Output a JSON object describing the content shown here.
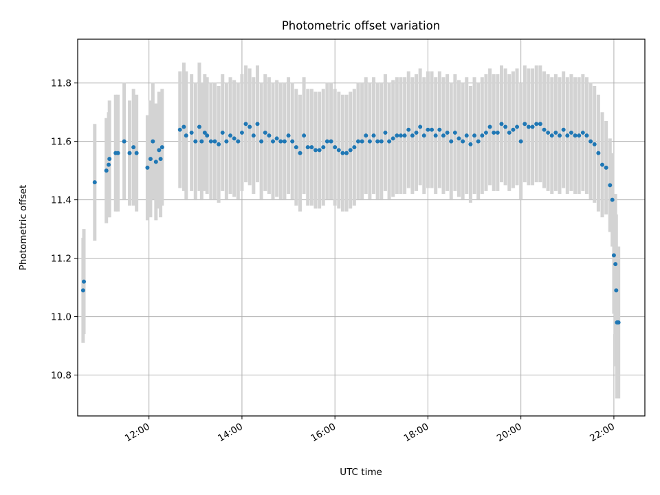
{
  "chart_data": {
    "type": "scatter",
    "title": "Photometric offset variation",
    "xlabel": "UTC time",
    "ylabel": "Photometric offset",
    "x_type": "time",
    "xlim": [
      "10:28",
      "22:40"
    ],
    "ylim": [
      10.66,
      11.95
    ],
    "x_ticks": [
      "12:00",
      "14:00",
      "16:00",
      "18:00",
      "20:00",
      "22:00"
    ],
    "y_ticks": [
      10.8,
      11.0,
      11.2,
      11.4,
      11.6,
      11.8
    ],
    "y_tick_labels": [
      "10.8",
      "11.0",
      "11.2",
      "11.4",
      "11.6",
      "11.8"
    ],
    "grid": true,
    "errorbar_color": "#d3d3d3",
    "marker_color": "#1f77b4",
    "series": [
      {
        "x": [
          "10:35",
          "10:36",
          "10:50",
          "11:05",
          "11:08",
          "11:09",
          "11:17",
          "11:20",
          "11:28",
          "11:35",
          "11:40",
          "11:44",
          "11:58",
          "12:02",
          "12:05",
          "12:09",
          "12:13",
          "12:15",
          "12:17",
          "12:40",
          "12:45",
          "12:48",
          "12:55",
          "13:00",
          "13:05",
          "13:08",
          "13:12",
          "13:15",
          "13:20",
          "13:25",
          "13:30",
          "13:35",
          "13:40",
          "13:45",
          "13:50",
          "13:55",
          "14:00",
          "14:05",
          "14:10",
          "14:15",
          "14:20",
          "14:25",
          "14:30",
          "14:35",
          "14:40",
          "14:45",
          "14:50",
          "14:55",
          "15:00",
          "15:05",
          "15:10",
          "15:15",
          "15:20",
          "15:25",
          "15:30",
          "15:35",
          "15:40",
          "15:45",
          "15:50",
          "15:55",
          "16:00",
          "16:05",
          "16:10",
          "16:15",
          "16:20",
          "16:25",
          "16:30",
          "16:35",
          "16:40",
          "16:45",
          "16:50",
          "16:55",
          "17:00",
          "17:05",
          "17:10",
          "17:15",
          "17:20",
          "17:25",
          "17:30",
          "17:35",
          "17:40",
          "17:45",
          "17:50",
          "17:55",
          "18:00",
          "18:05",
          "18:10",
          "18:15",
          "18:20",
          "18:25",
          "18:30",
          "18:35",
          "18:40",
          "18:45",
          "18:50",
          "18:55",
          "19:00",
          "19:05",
          "19:10",
          "19:15",
          "19:20",
          "19:25",
          "19:30",
          "19:35",
          "19:40",
          "19:45",
          "19:50",
          "19:55",
          "20:00",
          "20:05",
          "20:10",
          "20:15",
          "20:20",
          "20:25",
          "20:30",
          "20:35",
          "20:40",
          "20:45",
          "20:50",
          "20:55",
          "21:00",
          "21:05",
          "21:10",
          "21:15",
          "21:20",
          "21:25",
          "21:30",
          "21:35",
          "21:40",
          "21:45",
          "21:50",
          "21:55",
          "21:58",
          "22:00",
          "22:02",
          "22:03",
          "22:04",
          "22:05",
          "22:06"
        ],
        "y": [
          11.09,
          11.12,
          11.46,
          11.5,
          11.52,
          11.54,
          11.56,
          11.56,
          11.6,
          11.56,
          11.58,
          11.56,
          11.51,
          11.54,
          11.6,
          11.53,
          11.57,
          11.54,
          11.58,
          11.64,
          11.65,
          11.62,
          11.63,
          11.6,
          11.65,
          11.6,
          11.63,
          11.62,
          11.6,
          11.6,
          11.59,
          11.63,
          11.6,
          11.62,
          11.61,
          11.6,
          11.63,
          11.66,
          11.65,
          11.62,
          11.66,
          11.6,
          11.63,
          11.62,
          11.6,
          11.61,
          11.6,
          11.6,
          11.62,
          11.6,
          11.58,
          11.56,
          11.62,
          11.58,
          11.58,
          11.57,
          11.57,
          11.58,
          11.6,
          11.6,
          11.58,
          11.57,
          11.56,
          11.56,
          11.57,
          11.58,
          11.6,
          11.6,
          11.62,
          11.6,
          11.62,
          11.6,
          11.6,
          11.63,
          11.6,
          11.61,
          11.62,
          11.62,
          11.62,
          11.64,
          11.62,
          11.63,
          11.65,
          11.62,
          11.64,
          11.64,
          11.62,
          11.64,
          11.62,
          11.63,
          11.6,
          11.63,
          11.61,
          11.6,
          11.62,
          11.59,
          11.62,
          11.6,
          11.62,
          11.63,
          11.65,
          11.63,
          11.63,
          11.66,
          11.65,
          11.63,
          11.64,
          11.65,
          11.6,
          11.66,
          11.65,
          11.65,
          11.66,
          11.66,
          11.64,
          11.63,
          11.62,
          11.63,
          11.62,
          11.64,
          11.62,
          11.63,
          11.62,
          11.62,
          11.63,
          11.62,
          11.6,
          11.59,
          11.56,
          11.52,
          11.51,
          11.45,
          11.4,
          11.21,
          11.18,
          11.09,
          10.98,
          10.98,
          10.98
        ],
        "yerr": [
          0.18,
          0.18,
          0.2,
          0.18,
          0.18,
          0.2,
          0.2,
          0.2,
          0.2,
          0.18,
          0.2,
          0.2,
          0.18,
          0.2,
          0.2,
          0.2,
          0.2,
          0.2,
          0.2,
          0.2,
          0.22,
          0.22,
          0.2,
          0.2,
          0.22,
          0.2,
          0.2,
          0.2,
          0.2,
          0.2,
          0.2,
          0.2,
          0.2,
          0.2,
          0.2,
          0.2,
          0.2,
          0.2,
          0.2,
          0.2,
          0.2,
          0.2,
          0.2,
          0.2,
          0.2,
          0.2,
          0.2,
          0.2,
          0.2,
          0.2,
          0.2,
          0.2,
          0.2,
          0.2,
          0.2,
          0.2,
          0.2,
          0.2,
          0.2,
          0.2,
          0.2,
          0.2,
          0.2,
          0.2,
          0.2,
          0.2,
          0.2,
          0.2,
          0.2,
          0.2,
          0.2,
          0.2,
          0.2,
          0.2,
          0.2,
          0.2,
          0.2,
          0.2,
          0.2,
          0.2,
          0.2,
          0.2,
          0.2,
          0.2,
          0.2,
          0.2,
          0.2,
          0.2,
          0.2,
          0.2,
          0.2,
          0.2,
          0.2,
          0.2,
          0.2,
          0.2,
          0.2,
          0.2,
          0.2,
          0.2,
          0.2,
          0.2,
          0.2,
          0.2,
          0.2,
          0.2,
          0.2,
          0.2,
          0.2,
          0.2,
          0.2,
          0.2,
          0.2,
          0.2,
          0.2,
          0.2,
          0.2,
          0.2,
          0.2,
          0.2,
          0.2,
          0.2,
          0.2,
          0.2,
          0.2,
          0.2,
          0.2,
          0.2,
          0.2,
          0.18,
          0.16,
          0.16,
          0.16,
          0.2,
          0.24,
          0.26,
          0.26,
          0.26,
          0.26
        ]
      }
    ]
  }
}
